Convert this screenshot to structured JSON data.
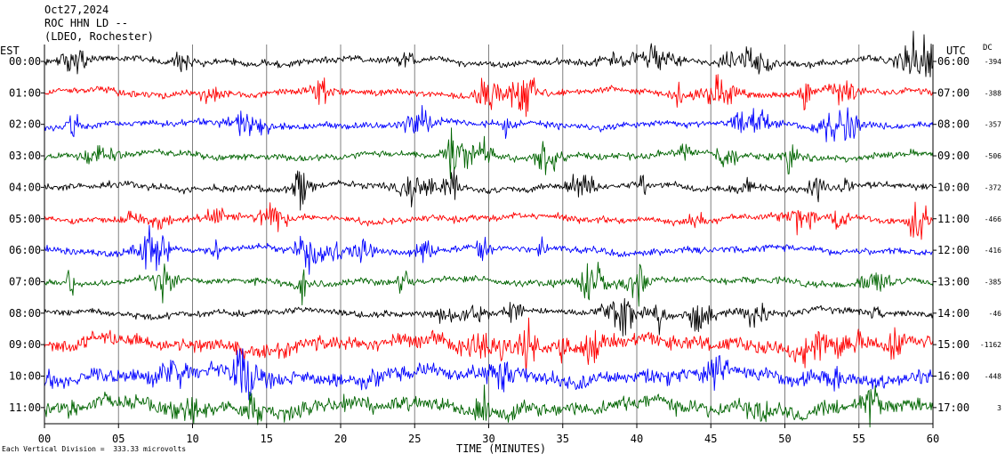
{
  "header": {
    "date": "Oct27,2024",
    "station": "ROC HHN LD --",
    "network": "(LDEO, Rochester)"
  },
  "left_axis_label": "EST",
  "right_axis_label": "UTC",
  "dc_label": "DC",
  "footer": {
    "scale_text": "Each Vertical Division =  333.33 microvolts"
  },
  "chart_data": {
    "type": "line",
    "xlabel": "TIME (MINUTES)",
    "xlim": [
      0,
      60
    ],
    "x_ticks": [
      "00",
      "05",
      "10",
      "15",
      "20",
      "25",
      "30",
      "35",
      "40",
      "45",
      "50",
      "55",
      "60"
    ],
    "rows": [
      {
        "est": "00:00",
        "utc": "06:00",
        "dc": "-394",
        "color": "#000000"
      },
      {
        "est": "01:00",
        "utc": "07:00",
        "dc": "-388",
        "color": "#ff0000"
      },
      {
        "est": "02:00",
        "utc": "08:00",
        "dc": "-357",
        "color": "#0000ff"
      },
      {
        "est": "03:00",
        "utc": "09:00",
        "dc": "-506",
        "color": "#006400"
      },
      {
        "est": "04:00",
        "utc": "10:00",
        "dc": "-372",
        "color": "#000000"
      },
      {
        "est": "05:00",
        "utc": "11:00",
        "dc": "-466",
        "color": "#ff0000"
      },
      {
        "est": "06:00",
        "utc": "12:00",
        "dc": "-416",
        "color": "#0000ff"
      },
      {
        "est": "07:00",
        "utc": "13:00",
        "dc": "-385",
        "color": "#006400"
      },
      {
        "est": "08:00",
        "utc": "14:00",
        "dc": "-46",
        "color": "#000000"
      },
      {
        "est": "09:00",
        "utc": "15:00",
        "dc": "-1162",
        "color": "#ff0000"
      },
      {
        "est": "10:00",
        "utc": "16:00",
        "dc": "-448",
        "color": "#0000ff"
      },
      {
        "est": "11:00",
        "utc": "17:00",
        "dc": "3",
        "color": "#006400"
      }
    ],
    "grid": true
  }
}
